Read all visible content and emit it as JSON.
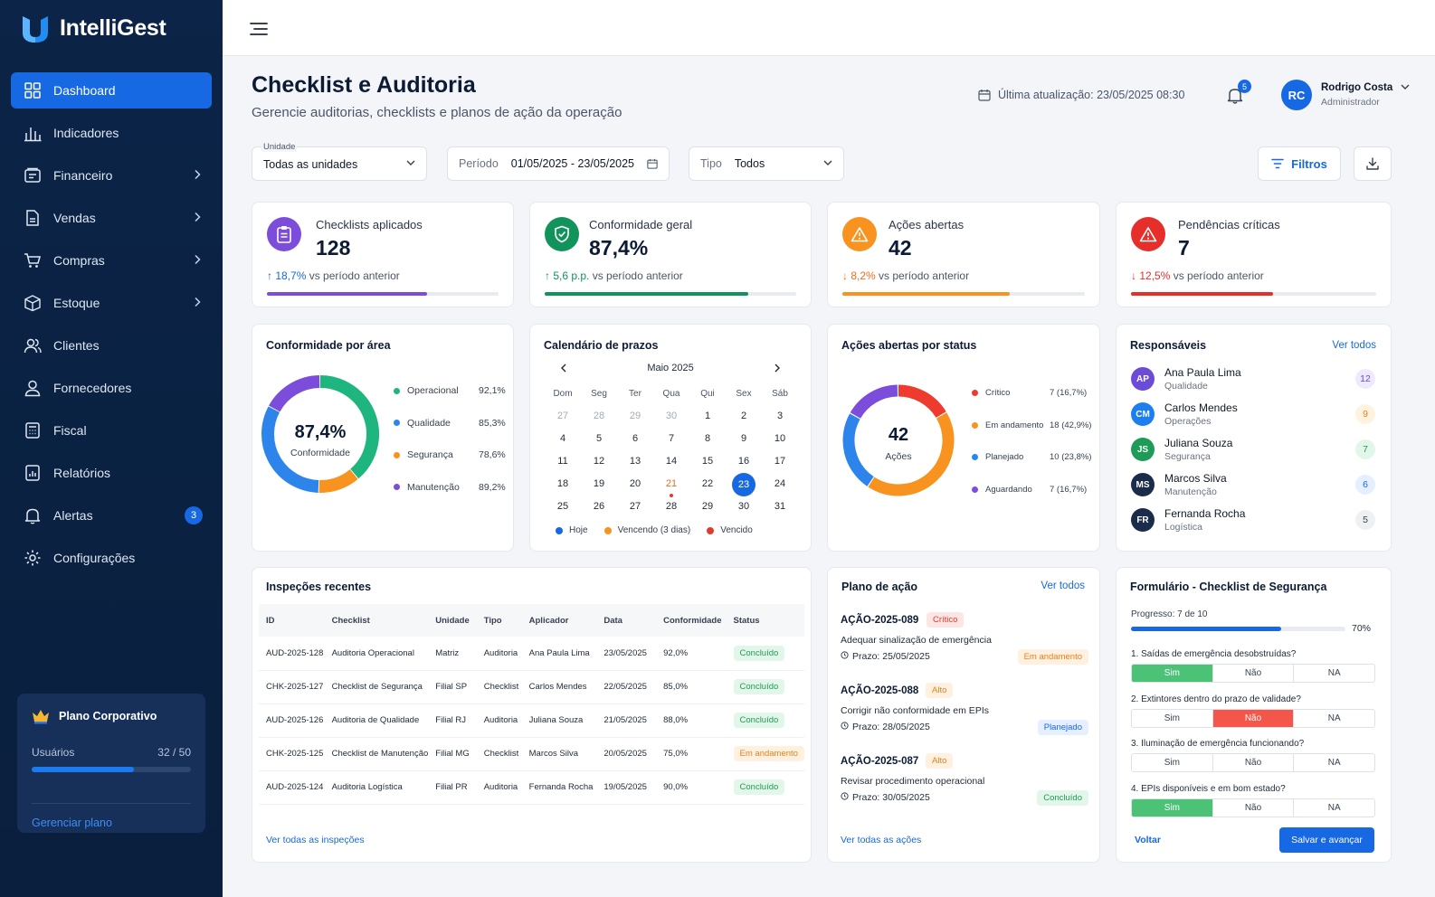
{
  "app": {
    "name": "IntelliGest"
  },
  "sidebar": {
    "items": [
      {
        "label": "Dashboard",
        "icon": "grid-icon",
        "active": true,
        "chevron": false
      },
      {
        "label": "Indicadores",
        "icon": "bar-chart-icon",
        "chevron": false
      },
      {
        "label": "Financeiro",
        "icon": "wallet-icon",
        "chevron": true
      },
      {
        "label": "Vendas",
        "icon": "document-icon",
        "chevron": true
      },
      {
        "label": "Compras",
        "icon": "cart-icon",
        "chevron": true
      },
      {
        "label": "Estoque",
        "icon": "box-icon",
        "chevron": true
      },
      {
        "label": "Clientes",
        "icon": "users-icon",
        "chevron": false
      },
      {
        "label": "Fornecedores",
        "icon": "user-icon",
        "chevron": false
      },
      {
        "label": "Fiscal",
        "icon": "calculator-icon",
        "chevron": false
      },
      {
        "label": "Relatórios",
        "icon": "report-icon",
        "chevron": false
      },
      {
        "label": "Alertas",
        "icon": "bell-icon",
        "chevron": false,
        "badge": "3"
      },
      {
        "label": "Configurações",
        "icon": "gear-icon",
        "chevron": false
      }
    ],
    "plan": {
      "title": "Plano Corporativo",
      "users_label": "Usuários",
      "users_value": "32 / 50",
      "users_progress": 0.64,
      "manage_label": "Gerenciar plano"
    }
  },
  "header": {
    "title": "Checklist e Auditoria",
    "subtitle": "Gerencie auditorias, checklists e planos de ação da operação",
    "last_update": "Última atualização: 23/05/2025 08:30",
    "notifications": "5",
    "user": {
      "initials": "RC",
      "name": "Rodrigo Costa",
      "role": "Administrador"
    }
  },
  "filters": {
    "unit": {
      "label": "Unidade",
      "value": "Todas as unidades"
    },
    "period": {
      "label": "Período",
      "value": "01/05/2025 - 23/05/2025"
    },
    "type": {
      "label": "Tipo",
      "value": "Todos"
    },
    "filter_button": "Filtros"
  },
  "kpis": [
    {
      "label": "Checklists aplicados",
      "value": "128",
      "delta": "18,7%",
      "delta_text": "vs período anterior",
      "direction": "up",
      "color": "#7c4ddb",
      "progress": 0.69
    },
    {
      "label": "Conformidade geral",
      "value": "87,4%",
      "delta": "5,6 p.p.",
      "delta_text": "vs período anterior",
      "direction": "up",
      "color": "#12935b",
      "progress": 0.81
    },
    {
      "label": "Ações abertas",
      "value": "42",
      "delta": "8,2%",
      "delta_text": "vs período anterior",
      "direction": "down",
      "color": "#f7931e",
      "progress": 0.69
    },
    {
      "label": "Pendências críticas",
      "value": "7",
      "delta": "12,5%",
      "delta_text": "vs período anterior",
      "direction": "down",
      "color": "#e62e2a",
      "progress": 0.58
    }
  ],
  "conformity": {
    "title": "Conformidade por área",
    "center_value": "87,4%",
    "center_label": "Conformidade",
    "areas": [
      {
        "name": "Operacional",
        "value": "92,1%",
        "color": "#1fb57e"
      },
      {
        "name": "Qualidade",
        "value": "85,3%",
        "color": "#2d85ec"
      },
      {
        "name": "Segurança",
        "value": "78,6%",
        "color": "#f7931e"
      },
      {
        "name": "Manutenção",
        "value": "89,2%",
        "color": "#7c4ddb"
      }
    ]
  },
  "calendar": {
    "title": "Calendário de prazos",
    "month": "Maio 2025",
    "weekdays": [
      "Dom",
      "Seg",
      "Ter",
      "Qua",
      "Qui",
      "Sex",
      "Sáb"
    ],
    "weeks": [
      [
        "27",
        "28",
        "29",
        "30",
        "1",
        "2",
        "3"
      ],
      [
        "4",
        "5",
        "6",
        "7",
        "8",
        "9",
        "10"
      ],
      [
        "11",
        "12",
        "13",
        "14",
        "15",
        "16",
        "17"
      ],
      [
        "18",
        "19",
        "20",
        "21",
        "22",
        "23",
        "24"
      ],
      [
        "25",
        "26",
        "27",
        "28",
        "29",
        "30",
        "31"
      ]
    ],
    "today": "23",
    "soon": "21",
    "legend": [
      {
        "label": "Hoje",
        "color": "#1668e3"
      },
      {
        "label": "Vencendo (3 dias)",
        "color": "#f7931e"
      },
      {
        "label": "Vencido",
        "color": "#e23b2e"
      }
    ]
  },
  "actions_status": {
    "title": "Ações abertas por status",
    "center_value": "42",
    "center_label": "Ações",
    "items": [
      {
        "name": "Crítico",
        "value": "7 (16,7%)",
        "count": 7,
        "color": "#ef3b2d"
      },
      {
        "name": "Em andamento",
        "value": "18 (42,9%)",
        "count": 18,
        "color": "#f7931e"
      },
      {
        "name": "Planejado",
        "value": "10 (23,8%)",
        "count": 10,
        "color": "#2d85ec"
      },
      {
        "name": "Aguardando",
        "value": "7 (16,7%)",
        "count": 7,
        "color": "#7c4ddb"
      }
    ]
  },
  "responsaveis": {
    "title": "Responsáveis",
    "link": "Ver todos",
    "people": [
      {
        "initials": "AP",
        "name": "Ana Paula Lima",
        "role": "Qualidade",
        "count": "12",
        "avatar_color": "#6c4bd6",
        "badge_bg": "#efe9fd",
        "badge_color": "#6c4bd6"
      },
      {
        "initials": "CM",
        "name": "Carlos Mendes",
        "role": "Operações",
        "count": "9",
        "avatar_color": "#1c7ff0",
        "badge_bg": "#fff3df",
        "badge_color": "#e6821c"
      },
      {
        "initials": "JS",
        "name": "Juliana Souza",
        "role": "Segurança",
        "count": "7",
        "avatar_color": "#1e9b57",
        "badge_bg": "#e3f6ea",
        "badge_color": "#1e9b57"
      },
      {
        "initials": "MS",
        "name": "Marcos Silva",
        "role": "Manutenção",
        "count": "6",
        "avatar_color": "#1b2c4a",
        "badge_bg": "#e5efff",
        "badge_color": "#1668e3"
      },
      {
        "initials": "FR",
        "name": "Fernanda Rocha",
        "role": "Logística",
        "count": "5",
        "avatar_color": "#1b2c4a",
        "badge_bg": "#eef0f3",
        "badge_color": "#374151"
      }
    ]
  },
  "inspections": {
    "title": "Inspeções recentes",
    "columns": [
      "ID",
      "Checklist",
      "Unidade",
      "Tipo",
      "Aplicador",
      "Data",
      "Conformidade",
      "Status"
    ],
    "rows": [
      [
        "AUD-2025-128",
        "Auditoria Operacional",
        "Matriz",
        "Auditoria",
        "Ana Paula Lima",
        "23/05/2025",
        "92,0%",
        "Concluído"
      ],
      [
        "CHK-2025-127",
        "Checklist de Segurança",
        "Filial SP",
        "Checklist",
        "Carlos Mendes",
        "22/05/2025",
        "85,0%",
        "Concluído"
      ],
      [
        "AUD-2025-126",
        "Auditoria de Qualidade",
        "Filial RJ",
        "Auditoria",
        "Juliana Souza",
        "21/05/2025",
        "88,0%",
        "Concluído"
      ],
      [
        "CHK-2025-125",
        "Checklist de Manutenção",
        "Filial MG",
        "Checklist",
        "Marcos Silva",
        "20/05/2025",
        "75,0%",
        "Em andamento"
      ],
      [
        "AUD-2025-124",
        "Auditoria Logística",
        "Filial PR",
        "Auditoria",
        "Fernanda Rocha",
        "19/05/2025",
        "90,0%",
        "Concluído"
      ]
    ],
    "link": "Ver todas as inspeções"
  },
  "action_plan": {
    "title": "Plano de ação",
    "link": "Ver todos",
    "items": [
      {
        "id": "AÇÃO-2025-089",
        "priority": "Crítico",
        "priority_class": "crit",
        "desc": "Adequar sinalização de emergência",
        "deadline": "Prazo: 25/05/2025",
        "status": "Em andamento",
        "status_class": "prog"
      },
      {
        "id": "AÇÃO-2025-088",
        "priority": "Alto",
        "priority_class": "high",
        "desc": "Corrigir não conformidade em EPIs",
        "deadline": "Prazo: 28/05/2025",
        "status": "Planejado",
        "status_class": "plan"
      },
      {
        "id": "AÇÃO-2025-087",
        "priority": "Alto",
        "priority_class": "high",
        "desc": "Revisar procedimento operacional",
        "deadline": "Prazo: 30/05/2025",
        "status": "Concluído",
        "status_class": "done"
      }
    ],
    "footer_link": "Ver todas as ações"
  },
  "form": {
    "title": "Formulário - Checklist de Segurança",
    "progress_label": "Progresso: 7 de 10",
    "progress_percent": "70%",
    "progress": 0.7,
    "options": [
      "Sim",
      "Não",
      "NA"
    ],
    "questions": [
      {
        "text": "1. Saídas de emergência desobstruídas?",
        "answer": 0
      },
      {
        "text": "2. Extintores dentro do prazo de validade?",
        "answer": 1
      },
      {
        "text": "3. Iluminação de emergência funcionando?",
        "answer": -1
      },
      {
        "text": "4. EPIs disponíveis e em bom estado?",
        "answer": 0
      }
    ],
    "back": "Voltar",
    "save": "Salvar e avançar"
  }
}
